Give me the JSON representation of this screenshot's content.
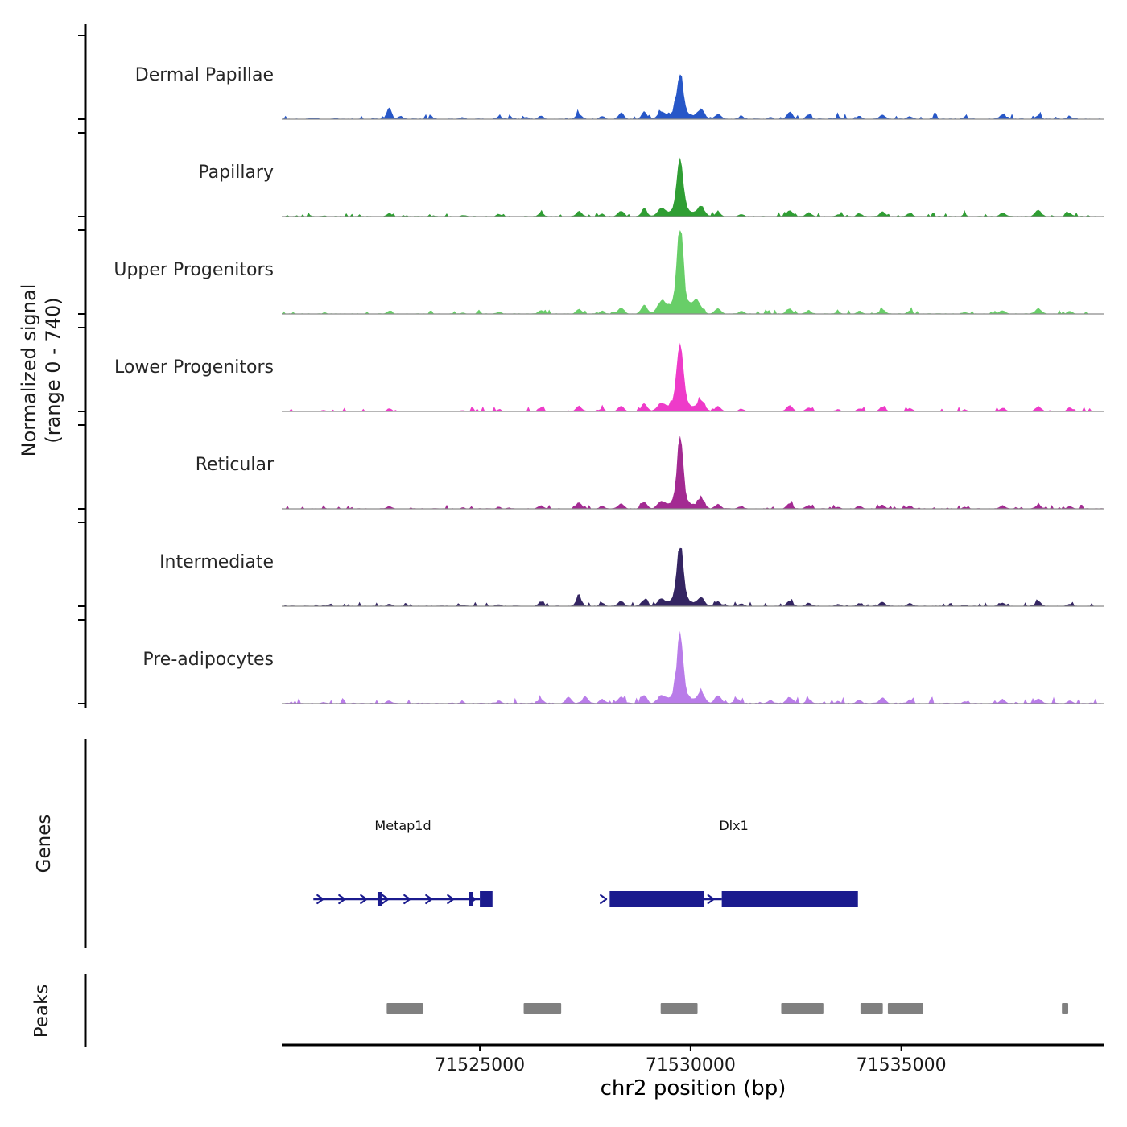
{
  "figure": {
    "y_axis_label_line1": "Normalized signal",
    "y_axis_label_line2": "(range 0 - 740)",
    "x_axis_label": "chr2 position (bp)",
    "genes_panel_label": "Genes",
    "peaks_panel_label": "Peaks",
    "chromosome": "chr2"
  },
  "chart_data": {
    "type": "area",
    "x_range_bp": [
      71520300,
      71539800
    ],
    "y_range": [
      0,
      740
    ],
    "x_ticks": [
      71525000,
      71530000,
      71535000
    ],
    "colors": {
      "gene_model": "#1b1b8e",
      "peak_box": "#808080",
      "baseline": "#8a8a8a",
      "axis": "#000000"
    },
    "tracks": [
      {
        "name": "Dermal Papillae",
        "color": "#2757c8",
        "seed": 11,
        "noise": 26,
        "bumps": [
          [
            71521100,
            12,
            70
          ],
          [
            71521600,
            8,
            60
          ],
          [
            71522850,
            105,
            80
          ],
          [
            71523120,
            30,
            70
          ],
          [
            71523900,
            10,
            60
          ],
          [
            71524600,
            14,
            70
          ],
          [
            71525450,
            22,
            70
          ],
          [
            71526100,
            18,
            70
          ],
          [
            71526450,
            30,
            80
          ],
          [
            71527350,
            48,
            90
          ],
          [
            71527900,
            26,
            70
          ],
          [
            71528350,
            55,
            95
          ],
          [
            71528900,
            65,
            90
          ],
          [
            71529300,
            50,
            110
          ],
          [
            71529750,
            350,
            105
          ],
          [
            71529750,
            55,
            400
          ],
          [
            71530250,
            75,
            110
          ],
          [
            71530650,
            42,
            95
          ],
          [
            71531200,
            25,
            80
          ],
          [
            71531900,
            18,
            70
          ],
          [
            71532350,
            62,
            100
          ],
          [
            71532800,
            40,
            85
          ],
          [
            71533500,
            20,
            75
          ],
          [
            71534000,
            24,
            80
          ],
          [
            71534550,
            38,
            90
          ],
          [
            71535200,
            26,
            80
          ],
          [
            71535800,
            15,
            70
          ],
          [
            71536500,
            18,
            75
          ],
          [
            71537400,
            40,
            95
          ],
          [
            71538250,
            32,
            85
          ],
          [
            71539000,
            22,
            75
          ]
        ]
      },
      {
        "name": "Papillary",
        "color": "#2f9e33",
        "seed": 22,
        "noise": 24,
        "bumps": [
          [
            71521300,
            8,
            60
          ],
          [
            71522850,
            30,
            75
          ],
          [
            71523900,
            9,
            60
          ],
          [
            71524600,
            12,
            65
          ],
          [
            71525450,
            20,
            70
          ],
          [
            71526450,
            34,
            85
          ],
          [
            71527350,
            45,
            90
          ],
          [
            71527900,
            24,
            70
          ],
          [
            71528350,
            50,
            95
          ],
          [
            71528900,
            72,
            90
          ],
          [
            71529300,
            60,
            110
          ],
          [
            71529750,
            440,
            105
          ],
          [
            71529750,
            65,
            380
          ],
          [
            71530250,
            80,
            110
          ],
          [
            71530650,
            38,
            90
          ],
          [
            71531200,
            22,
            75
          ],
          [
            71532350,
            52,
            95
          ],
          [
            71532800,
            34,
            85
          ],
          [
            71533500,
            18,
            70
          ],
          [
            71534000,
            26,
            80
          ],
          [
            71534550,
            42,
            90
          ],
          [
            71535200,
            28,
            80
          ],
          [
            71536500,
            16,
            70
          ],
          [
            71537400,
            32,
            90
          ],
          [
            71538250,
            55,
            100
          ],
          [
            71539000,
            26,
            80
          ]
        ]
      },
      {
        "name": "Upper Progenitors",
        "color": "#68ce68",
        "seed": 33,
        "noise": 22,
        "bumps": [
          [
            71521300,
            7,
            60
          ],
          [
            71522850,
            26,
            75
          ],
          [
            71524600,
            10,
            60
          ],
          [
            71525450,
            18,
            70
          ],
          [
            71526450,
            30,
            85
          ],
          [
            71527350,
            42,
            90
          ],
          [
            71527900,
            26,
            75
          ],
          [
            71528350,
            55,
            100
          ],
          [
            71528900,
            80,
            100
          ],
          [
            71529300,
            95,
            140
          ],
          [
            71529750,
            700,
            100
          ],
          [
            71529750,
            120,
            330
          ],
          [
            71530150,
            95,
            140
          ],
          [
            71530650,
            48,
            100
          ],
          [
            71531200,
            24,
            80
          ],
          [
            71532350,
            48,
            95
          ],
          [
            71532800,
            32,
            85
          ],
          [
            71533500,
            18,
            70
          ],
          [
            71534000,
            24,
            80
          ],
          [
            71534550,
            40,
            90
          ],
          [
            71535200,
            26,
            80
          ],
          [
            71536500,
            15,
            70
          ],
          [
            71537400,
            30,
            90
          ],
          [
            71538250,
            48,
            100
          ],
          [
            71539000,
            24,
            80
          ]
        ]
      },
      {
        "name": "Lower Progenitors",
        "color": "#ee3bc9",
        "seed": 44,
        "noise": 24,
        "bumps": [
          [
            71521300,
            8,
            60
          ],
          [
            71522850,
            24,
            75
          ],
          [
            71524600,
            10,
            60
          ],
          [
            71525450,
            18,
            70
          ],
          [
            71526450,
            30,
            85
          ],
          [
            71527350,
            50,
            90
          ],
          [
            71527900,
            26,
            75
          ],
          [
            71528350,
            48,
            95
          ],
          [
            71528900,
            66,
            95
          ],
          [
            71529300,
            60,
            120
          ],
          [
            71529750,
            550,
            105
          ],
          [
            71529750,
            80,
            360
          ],
          [
            71530250,
            85,
            115
          ],
          [
            71530650,
            44,
            95
          ],
          [
            71531200,
            24,
            80
          ],
          [
            71532350,
            50,
            95
          ],
          [
            71532800,
            34,
            85
          ],
          [
            71533500,
            18,
            70
          ],
          [
            71534000,
            25,
            80
          ],
          [
            71534550,
            40,
            90
          ],
          [
            71535200,
            26,
            80
          ],
          [
            71536500,
            16,
            70
          ],
          [
            71537400,
            30,
            90
          ],
          [
            71538250,
            40,
            95
          ],
          [
            71539000,
            35,
            85
          ]
        ]
      },
      {
        "name": "Reticular",
        "color": "#a32a92",
        "seed": 55,
        "noise": 22,
        "bumps": [
          [
            71521300,
            7,
            60
          ],
          [
            71522850,
            22,
            75
          ],
          [
            71524600,
            10,
            60
          ],
          [
            71525450,
            16,
            70
          ],
          [
            71526450,
            28,
            85
          ],
          [
            71527350,
            55,
            95
          ],
          [
            71527900,
            25,
            75
          ],
          [
            71528350,
            45,
            95
          ],
          [
            71528900,
            60,
            95
          ],
          [
            71529300,
            55,
            115
          ],
          [
            71529750,
            560,
            100
          ],
          [
            71529750,
            75,
            340
          ],
          [
            71530250,
            78,
            110
          ],
          [
            71530650,
            40,
            95
          ],
          [
            71531200,
            22,
            80
          ],
          [
            71532350,
            45,
            95
          ],
          [
            71532800,
            30,
            85
          ],
          [
            71533500,
            16,
            70
          ],
          [
            71534000,
            24,
            80
          ],
          [
            71534550,
            36,
            90
          ],
          [
            71535200,
            25,
            80
          ],
          [
            71536500,
            14,
            70
          ],
          [
            71537400,
            28,
            90
          ],
          [
            71538250,
            35,
            90
          ],
          [
            71539000,
            20,
            75
          ]
        ]
      },
      {
        "name": "Intermediate",
        "color": "#342562",
        "seed": 66,
        "noise": 22,
        "bumps": [
          [
            71521300,
            6,
            60
          ],
          [
            71522850,
            20,
            75
          ],
          [
            71524600,
            9,
            60
          ],
          [
            71525450,
            15,
            70
          ],
          [
            71526450,
            40,
            90
          ],
          [
            71527350,
            70,
            100
          ],
          [
            71527900,
            28,
            75
          ],
          [
            71528350,
            45,
            95
          ],
          [
            71528900,
            58,
            95
          ],
          [
            71529300,
            52,
            115
          ],
          [
            71529750,
            470,
            105
          ],
          [
            71529750,
            70,
            340
          ],
          [
            71530250,
            72,
            110
          ],
          [
            71530650,
            40,
            95
          ],
          [
            71531200,
            22,
            80
          ],
          [
            71532350,
            44,
            95
          ],
          [
            71532800,
            30,
            85
          ],
          [
            71533500,
            16,
            70
          ],
          [
            71534000,
            24,
            80
          ],
          [
            71534550,
            38,
            90
          ],
          [
            71535200,
            26,
            80
          ],
          [
            71536500,
            14,
            70
          ],
          [
            71537400,
            30,
            90
          ],
          [
            71538250,
            42,
            95
          ],
          [
            71539000,
            20,
            75
          ]
        ]
      },
      {
        "name": "Pre-adipocytes",
        "color": "#b97ce9",
        "seed": 77,
        "noise": 34,
        "bumps": [
          [
            71521300,
            10,
            60
          ],
          [
            71522850,
            26,
            75
          ],
          [
            71524600,
            12,
            65
          ],
          [
            71525450,
            20,
            70
          ],
          [
            71526450,
            36,
            85
          ],
          [
            71527100,
            55,
            95
          ],
          [
            71527500,
            60,
            95
          ],
          [
            71527900,
            40,
            85
          ],
          [
            71528350,
            60,
            100
          ],
          [
            71528900,
            70,
            95
          ],
          [
            71529300,
            58,
            115
          ],
          [
            71529750,
            540,
            100
          ],
          [
            71529750,
            85,
            340
          ],
          [
            71530250,
            90,
            115
          ],
          [
            71530650,
            70,
            110
          ],
          [
            71531100,
            40,
            90
          ],
          [
            71531900,
            25,
            80
          ],
          [
            71532350,
            55,
            100
          ],
          [
            71532800,
            38,
            85
          ],
          [
            71533500,
            22,
            75
          ],
          [
            71534000,
            30,
            80
          ],
          [
            71534550,
            48,
            95
          ],
          [
            71535200,
            32,
            85
          ],
          [
            71536500,
            18,
            70
          ],
          [
            71537400,
            34,
            90
          ],
          [
            71538250,
            40,
            95
          ],
          [
            71539000,
            24,
            75
          ]
        ]
      }
    ],
    "genes": [
      {
        "name": "Metap1d",
        "strand": "+",
        "start": 71521050,
        "end": 71525300,
        "label_pos": 71523175,
        "line": [
          71521050,
          71525000
        ],
        "exon_ticks": [
          71522620,
          71524780
        ],
        "boxes": [
          [
            71525000,
            71525300
          ]
        ],
        "start_arrow": false
      },
      {
        "name": "Dlx1",
        "strand": "+",
        "start": 71528000,
        "end": 71533970,
        "label_pos": 71531025,
        "line": [
          71530320,
          71530740
        ],
        "exon_ticks": [],
        "boxes": [
          [
            71528080,
            71530320
          ],
          [
            71530740,
            71533970
          ]
        ],
        "start_arrow": true
      }
    ],
    "peaks": [
      [
        71522790,
        71523650
      ],
      [
        71526040,
        71526930
      ],
      [
        71529290,
        71530165
      ],
      [
        71532150,
        71533150
      ],
      [
        71534030,
        71534560
      ],
      [
        71534680,
        71535520
      ],
      [
        71538810,
        71538960
      ]
    ]
  }
}
